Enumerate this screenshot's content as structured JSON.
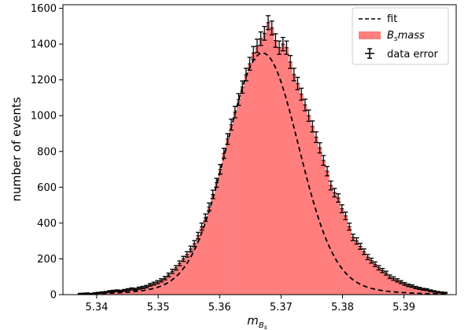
{
  "chart_data": {
    "type": "bar",
    "xlabel_base": "m",
    "xlabel_sub": "B",
    "xlabel_subsub": "s",
    "ylabel": "number of events",
    "xlim": [
      5.3345,
      5.3985
    ],
    "ylim": [
      0,
      1620
    ],
    "x_ticks": [
      5.34,
      5.35,
      5.36,
      5.37,
      5.38,
      5.39
    ],
    "x_tick_labels": [
      "5.34",
      "5.35",
      "5.36",
      "5.37",
      "5.38",
      "5.39"
    ],
    "y_ticks": [
      0,
      200,
      400,
      600,
      800,
      1000,
      1200,
      1400,
      1600
    ],
    "y_tick_labels": [
      "0",
      "200",
      "400",
      "600",
      "800",
      "1000",
      "1200",
      "1400",
      "1600"
    ],
    "histogram": {
      "name": "B_s mass",
      "color": "#ff7f7f",
      "bin_edges_start": 5.337,
      "bin_width": 0.0006,
      "counts": [
        5,
        6,
        7,
        5,
        8,
        10,
        12,
        14,
        18,
        20,
        22,
        20,
        24,
        28,
        32,
        30,
        36,
        40,
        45,
        55,
        62,
        70,
        80,
        92,
        110,
        130,
        150,
        175,
        200,
        225,
        255,
        285,
        330,
        380,
        430,
        490,
        560,
        625,
        700,
        790,
        870,
        950,
        1020,
        1090,
        1160,
        1230,
        1290,
        1350,
        1390,
        1430,
        1460,
        1520,
        1490,
        1420,
        1380,
        1400,
        1380,
        1300,
        1230,
        1180,
        1120,
        1060,
        1000,
        940,
        880,
        820,
        750,
        690,
        610,
        570,
        540,
        480,
        440,
        380,
        320,
        300,
        270,
        240,
        210,
        190,
        170,
        150,
        135,
        120,
        100,
        90,
        80,
        70,
        60,
        52,
        48,
        40,
        35,
        30,
        28,
        22,
        18,
        14,
        12,
        10
      ]
    },
    "fit": {
      "name": "fit",
      "style": "dashed",
      "color": "#000000",
      "peak": 1350,
      "mean": 5.367,
      "sigma_core": 0.0058,
      "tail_frac": 0.05,
      "sigma_tail": 0.012
    },
    "data_error": {
      "name": "data error",
      "color": "#000000"
    },
    "legend": {
      "position": "top-right",
      "entries": [
        {
          "label": "fit",
          "kind": "dashed-line"
        },
        {
          "label_base": "B",
          "label_sub": "s",
          "label_rest": "mass",
          "kind": "patch"
        },
        {
          "label": "data error",
          "kind": "errorbar"
        }
      ]
    }
  }
}
